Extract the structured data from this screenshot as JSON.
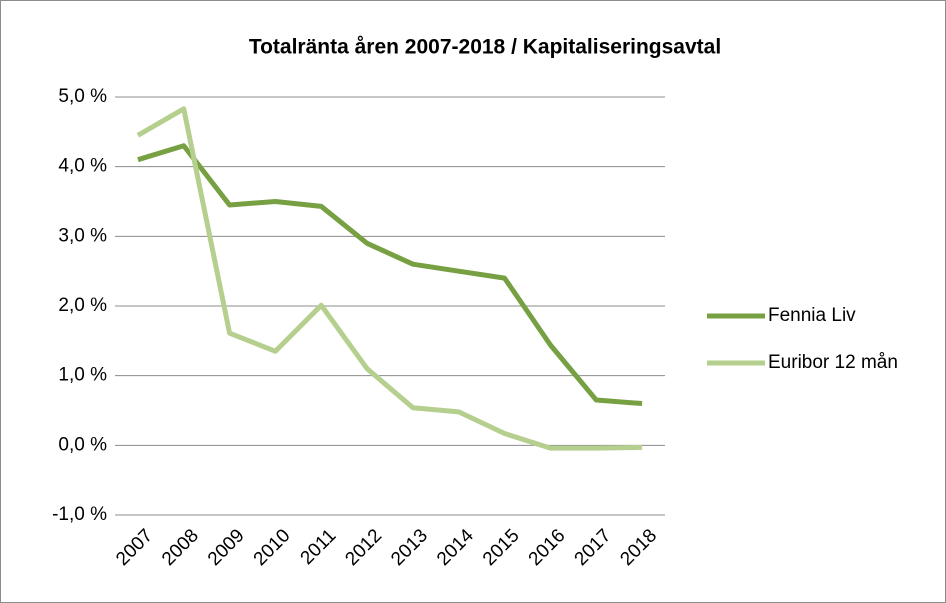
{
  "chart_data": {
    "type": "line",
    "title": "Totalränta åren 2007-2018 / Kapitaliseringsavtal",
    "categories": [
      "2007",
      "2008",
      "2009",
      "2010",
      "2011",
      "2012",
      "2013",
      "2014",
      "2015",
      "2016",
      "2017",
      "2018"
    ],
    "series": [
      {
        "name": "Fennia Liv",
        "color": "#77a043",
        "values": [
          4.1,
          4.3,
          3.45,
          3.5,
          3.43,
          2.9,
          2.6,
          2.5,
          2.4,
          1.44,
          0.65,
          0.6
        ]
      },
      {
        "name": "Euribor 12 mån",
        "color": "#b5cf8f",
        "values": [
          4.45,
          4.83,
          1.61,
          1.35,
          2.01,
          1.1,
          0.54,
          0.48,
          0.17,
          -0.04,
          -0.04,
          -0.03
        ]
      }
    ],
    "ylim": [
      -1,
      5
    ],
    "yticks": [
      {
        "value": -1,
        "label": "-1,0 %"
      },
      {
        "value": 0,
        "label": "0,0 %"
      },
      {
        "value": 1,
        "label": "1,0 %"
      },
      {
        "value": 2,
        "label": "2,0 %"
      },
      {
        "value": 3,
        "label": "3,0 %"
      },
      {
        "value": 4,
        "label": "4,0 %"
      },
      {
        "value": 5,
        "label": "5,0 %"
      }
    ],
    "grid": true,
    "legend": "right"
  }
}
